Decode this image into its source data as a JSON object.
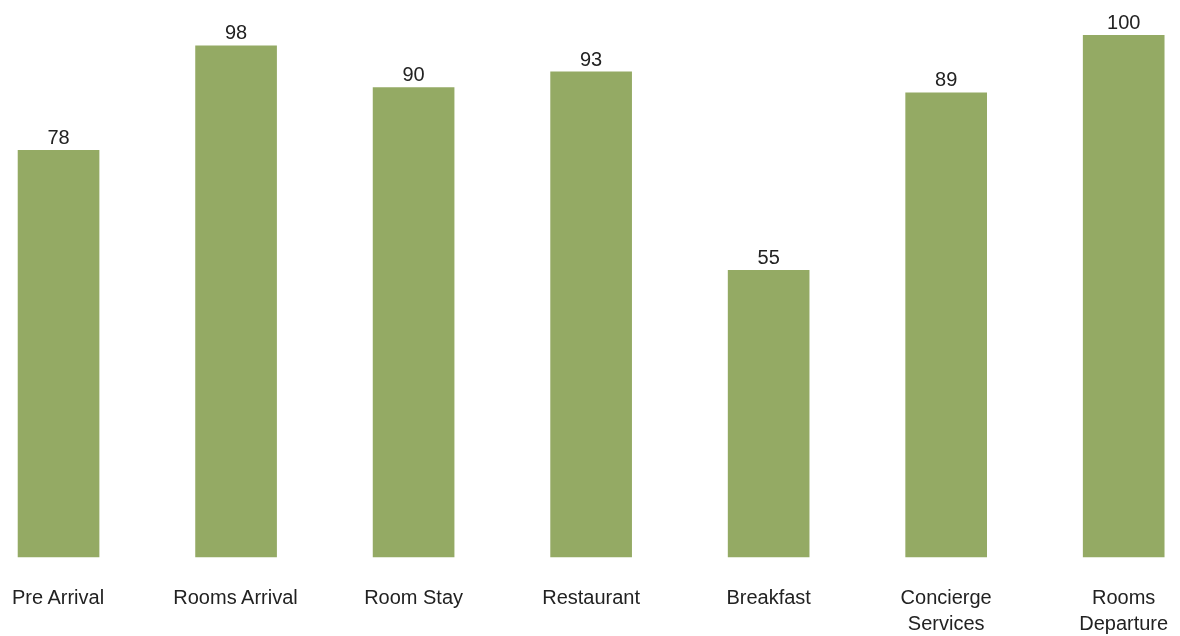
{
  "chart_data": {
    "type": "bar",
    "categories": [
      "Pre Arrival",
      "Rooms Arrival",
      "Room Stay",
      "Restaurant",
      "Breakfast",
      "Concierge\nServices",
      "Rooms\nDeparture"
    ],
    "values": [
      78,
      98,
      90,
      93,
      55,
      89,
      100
    ],
    "color": "#94aa64",
    "data_labels": true
  }
}
